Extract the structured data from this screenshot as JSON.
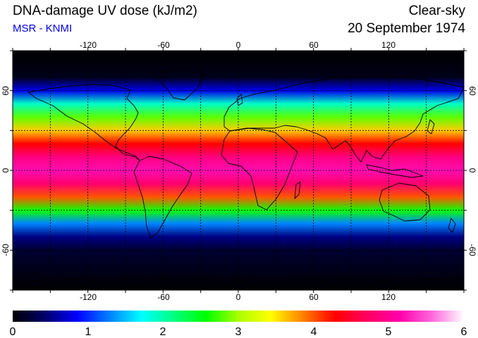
{
  "header": {
    "title": "DNA-damage UV dose (kJ/m2)",
    "subtitle": "MSR - KNMI",
    "condition": "Clear-sky",
    "date": "20 September 1974"
  },
  "map": {
    "lon_range": [
      -180,
      180
    ],
    "lat_range": [
      -90,
      90
    ],
    "lon_ticks": [
      "-120",
      "-60",
      "0",
      "60",
      "120"
    ],
    "lat_ticks": [
      "60",
      "0",
      "-60"
    ],
    "lon_tick_values": [
      -120,
      -60,
      0,
      60,
      120
    ],
    "lat_tick_values": [
      60,
      0,
      -60
    ],
    "grid_dashed_lon": [
      -150,
      -120,
      -90,
      -60,
      -30,
      0,
      30,
      60,
      90,
      120,
      150
    ],
    "grid_dashed_lat": [
      60,
      30,
      0,
      -30,
      -60
    ]
  },
  "colorbar": {
    "labels": [
      "0",
      "1",
      "2",
      "3",
      "4",
      "5",
      "6"
    ],
    "min": 0,
    "max": 6,
    "colors": [
      "#000000",
      "#00006a",
      "#0000ff",
      "#0080ff",
      "#00ffff",
      "#00ff80",
      "#00ff00",
      "#aaff00",
      "#ffff00",
      "#ff8000",
      "#ff0000",
      "#ff0060",
      "#ff00aa",
      "#ff66dd",
      "#ffffff"
    ]
  },
  "dose_profile": [
    {
      "lat": 90,
      "dose": 0.0
    },
    {
      "lat": 70,
      "dose": 0.1
    },
    {
      "lat": 60,
      "dose": 0.8
    },
    {
      "lat": 50,
      "dose": 1.9
    },
    {
      "lat": 40,
      "dose": 2.8
    },
    {
      "lat": 30,
      "dose": 3.6
    },
    {
      "lat": 20,
      "dose": 4.3
    },
    {
      "lat": 10,
      "dose": 4.9
    },
    {
      "lat": 0,
      "dose": 5.2
    },
    {
      "lat": -10,
      "dose": 4.8
    },
    {
      "lat": -20,
      "dose": 4.0
    },
    {
      "lat": -30,
      "dose": 2.6
    },
    {
      "lat": -40,
      "dose": 1.3
    },
    {
      "lat": -50,
      "dose": 0.5
    },
    {
      "lat": -60,
      "dose": 0.2
    },
    {
      "lat": -90,
      "dose": 0.0
    }
  ]
}
